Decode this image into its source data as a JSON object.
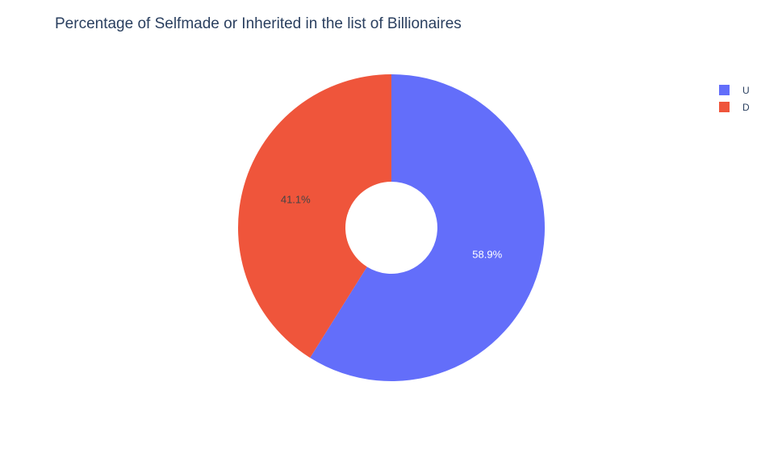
{
  "chart_data": {
    "type": "pie",
    "title": "Percentage of Selfmade or Inherited in the list of Billionaires",
    "hole": 0.3,
    "slices": [
      {
        "label": "U",
        "percent": 58.9,
        "percent_text": "58.9%",
        "color": "#636efa",
        "text_color": "#ffffff"
      },
      {
        "label": "D",
        "percent": 41.1,
        "percent_text": "41.1%",
        "color": "#ef553b",
        "text_color": "#444444"
      }
    ],
    "legend": {
      "position": "top-right",
      "entries": [
        "U",
        "D"
      ]
    }
  }
}
